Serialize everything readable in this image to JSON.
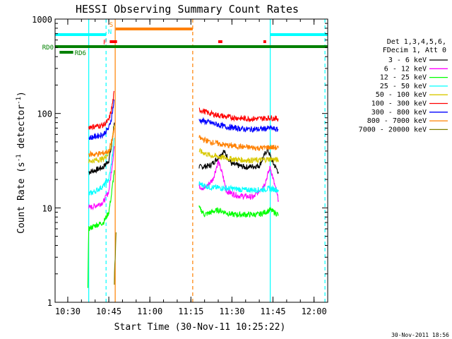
{
  "chart_data": {
    "type": "line",
    "title": "HESSI Observing Summary Count Rates",
    "xlabel": "Start Time (30-Nov-11 10:25:22)",
    "ylabel": "Count Rate (s⁻¹ detector⁻¹)",
    "ylabel_parts": {
      "base": "Count Rate (s",
      "sup1": "-1",
      "mid": " detector",
      "sup2": "-1",
      "end": ")"
    },
    "y_scale": "log",
    "ylim": [
      1,
      1000
    ],
    "xlim": [
      "10:25:22",
      "12:05:00"
    ],
    "x_ticks": [
      "10:30",
      "10:45",
      "11:00",
      "11:15",
      "11:30",
      "11:45",
      "12:00"
    ],
    "y_ticks": [
      "1",
      "10",
      "100",
      "1000"
    ],
    "legend": {
      "placement": "right",
      "header": [
        "Det 1,3,4,5,6,",
        "FDecim 1, Att 0"
      ],
      "entries": [
        {
          "label": "3 - 6 keV",
          "color": "#000000"
        },
        {
          "label": "6 - 12 keV",
          "color": "#ff00ff"
        },
        {
          "label": "12 - 25 keV",
          "color": "#00ff00"
        },
        {
          "label": "25 - 50 keV",
          "color": "#00ffff"
        },
        {
          "label": "50 - 100 keV",
          "color": "#d8c800"
        },
        {
          "label": "100 - 300 keV",
          "color": "#ff0000"
        },
        {
          "label": "300 - 800 keV",
          "color": "#0000ff"
        },
        {
          "label": "800 - 7000 keV",
          "color": "#ff8000"
        },
        {
          "label": "7000 - 20000 keV",
          "color": "#808000"
        }
      ]
    },
    "flags": [
      {
        "label": "S",
        "color": "#ff8000",
        "segments": [
          [
            "10:47:30",
            "11:15:40"
          ]
        ]
      },
      {
        "label": "N",
        "color": "#00ffff",
        "segments": [
          [
            "10:25:22",
            "10:44:00"
          ],
          [
            "11:44:00",
            "12:05:00"
          ]
        ]
      },
      {
        "label": "F",
        "color": "#ff0000",
        "segments": [
          [
            "10:45:20",
            "10:48:00"
          ],
          [
            "11:25:00",
            "11:26:30"
          ],
          [
            "11:41:30",
            "11:42:30"
          ]
        ]
      },
      {
        "label": "RD0",
        "color": "#008000",
        "segments": [
          [
            "10:25:22",
            "12:05:00"
          ]
        ]
      },
      {
        "label": "RD6",
        "color": "#008000",
        "segments": [
          [
            "10:27:00",
            "10:32:00"
          ]
        ]
      }
    ],
    "vertical_markers": [
      {
        "time": "10:37:40",
        "color": "#00ffff",
        "style": "solid"
      },
      {
        "time": "10:44:00",
        "color": "#00ffff",
        "style": "dashed"
      },
      {
        "time": "10:47:20",
        "color": "#ff8000",
        "style": "solid"
      },
      {
        "time": "11:15:40",
        "color": "#ff8000",
        "style": "dashed"
      },
      {
        "time": "11:44:00",
        "color": "#00ffff",
        "style": "solid"
      },
      {
        "time": "12:04:00",
        "color": "#00ffff",
        "style": "dashed"
      }
    ],
    "series": [
      {
        "name": "3 - 6 keV",
        "color": "#000000",
        "segments": [
          {
            "x": [
              "10:37:40",
              "10:40:00",
              "10:43:00",
              "10:45:00",
              "10:46:00",
              "10:47:00"
            ],
            "y": [
              24,
              25,
              27,
              32,
              45,
              80
            ]
          },
          {
            "x": [
              "11:18:00",
              "11:22:00",
              "11:25:00",
              "11:27:00",
              "11:30:00",
              "11:35:00",
              "11:40:00",
              "11:43:00",
              "11:45:00",
              "11:47:00"
            ],
            "y": [
              27,
              28,
              34,
              40,
              29,
              27,
              28,
              42,
              30,
              24
            ]
          }
        ]
      },
      {
        "name": "6 - 12 keV",
        "color": "#ff00ff",
        "segments": [
          {
            "x": [
              "10:37:40",
              "10:40:00",
              "10:43:00",
              "10:45:00",
              "10:46:00",
              "10:47:00"
            ],
            "y": [
              10,
              10.5,
              11.5,
              15,
              25,
              45
            ]
          },
          {
            "x": [
              "11:18:00",
              "11:20:00",
              "11:23:00",
              "11:25:00",
              "11:26:30",
              "11:28:00",
              "11:32:00",
              "11:38:00",
              "11:42:00",
              "11:44:00",
              "11:47:00"
            ],
            "y": [
              17,
              16,
              20,
              31,
              23,
              15,
              13.5,
              13,
              18,
              27,
              12
            ]
          }
        ]
      },
      {
        "name": "12 - 25 keV",
        "color": "#00ff00",
        "segments": [
          {
            "x": [
              "10:37:20",
              "10:37:40",
              "10:40:00",
              "10:43:00",
              "10:45:00",
              "10:46:00",
              "10:47:00"
            ],
            "y": [
              1.5,
              6,
              6.5,
              7,
              9,
              14,
              25
            ]
          },
          {
            "x": [
              "11:18:00",
              "11:20:00",
              "11:25:00",
              "11:30:00",
              "11:35:00",
              "11:40:00",
              "11:44:00",
              "11:47:00"
            ],
            "y": [
              10,
              8.5,
              9.5,
              8.5,
              8.5,
              8.5,
              9.5,
              8.5
            ]
          }
        ]
      },
      {
        "name": "25 - 50 keV",
        "color": "#00ffff",
        "segments": [
          {
            "x": [
              "10:37:40",
              "10:40:00",
              "10:43:00",
              "10:45:00",
              "10:46:00",
              "10:47:00"
            ],
            "y": [
              14,
              15,
              17,
              20,
              30,
              55
            ]
          },
          {
            "x": [
              "11:18:00",
              "11:22:00",
              "11:30:00",
              "11:35:00",
              "11:40:00",
              "11:44:00",
              "11:47:00"
            ],
            "y": [
              18,
              16.5,
              16,
              15.5,
              15.5,
              16,
              15.5
            ]
          }
        ]
      },
      {
        "name": "50 - 100 keV",
        "color": "#d8c800",
        "segments": [
          {
            "x": [
              "10:37:40",
              "10:40:00",
              "10:43:00",
              "10:45:00",
              "10:46:00",
              "10:47:00"
            ],
            "y": [
              31,
              32,
              33,
              38,
              48,
              75
            ]
          },
          {
            "x": [
              "11:18:00",
              "11:22:00",
              "11:30:00",
              "11:35:00",
              "11:40:00",
              "11:44:00",
              "11:47:00"
            ],
            "y": [
              40,
              36,
              33,
              32,
              32,
              33,
              32
            ]
          }
        ]
      },
      {
        "name": "100 - 300 keV",
        "color": "#ff0000",
        "segments": [
          {
            "x": [
              "10:37:40",
              "10:40:00",
              "10:43:00",
              "10:45:00",
              "10:46:00",
              "10:47:00"
            ],
            "y": [
              72,
              73,
              75,
              85,
              110,
              170
            ]
          },
          {
            "x": [
              "11:18:00",
              "11:22:00",
              "11:28:00",
              "11:35:00",
              "11:40:00",
              "11:44:00",
              "11:47:00"
            ],
            "y": [
              110,
              100,
              92,
              88,
              88,
              90,
              88
            ]
          }
        ]
      },
      {
        "name": "300 - 800 keV",
        "color": "#0000ff",
        "segments": [
          {
            "x": [
              "10:37:40",
              "10:40:00",
              "10:43:00",
              "10:45:00",
              "10:46:00",
              "10:47:00"
            ],
            "y": [
              55,
              57,
              60,
              70,
              90,
              140
            ]
          },
          {
            "x": [
              "11:18:00",
              "11:22:00",
              "11:28:00",
              "11:35:00",
              "11:40:00",
              "11:44:00",
              "11:47:00"
            ],
            "y": [
              85,
              80,
              72,
              68,
              68,
              70,
              67
            ]
          }
        ]
      },
      {
        "name": "800 - 7000 keV",
        "color": "#ff8000",
        "segments": [
          {
            "x": [
              "10:37:40",
              "10:40:00",
              "10:43:00",
              "10:45:00",
              "10:46:00",
              "10:47:00"
            ],
            "y": [
              37,
              37,
              38,
              40,
              50,
              70
            ]
          },
          {
            "x": [
              "11:18:00",
              "11:22:00",
              "11:28:00",
              "11:35:00",
              "11:40:00",
              "11:44:00",
              "11:47:00"
            ],
            "y": [
              55,
              50,
              46,
              44,
              43,
              44,
              43
            ]
          }
        ]
      },
      {
        "name": "7000 - 20000 keV",
        "color": "#808000",
        "segments": [
          {
            "x": [
              "10:47:00",
              "10:47:10",
              "10:47:20",
              "10:47:30",
              "10:47:40"
            ],
            "y": [
              1.5,
              2.5,
              3,
              4,
              5.5
            ]
          }
        ]
      }
    ],
    "footer_stamp": "30-Nov-2011 18:56"
  }
}
